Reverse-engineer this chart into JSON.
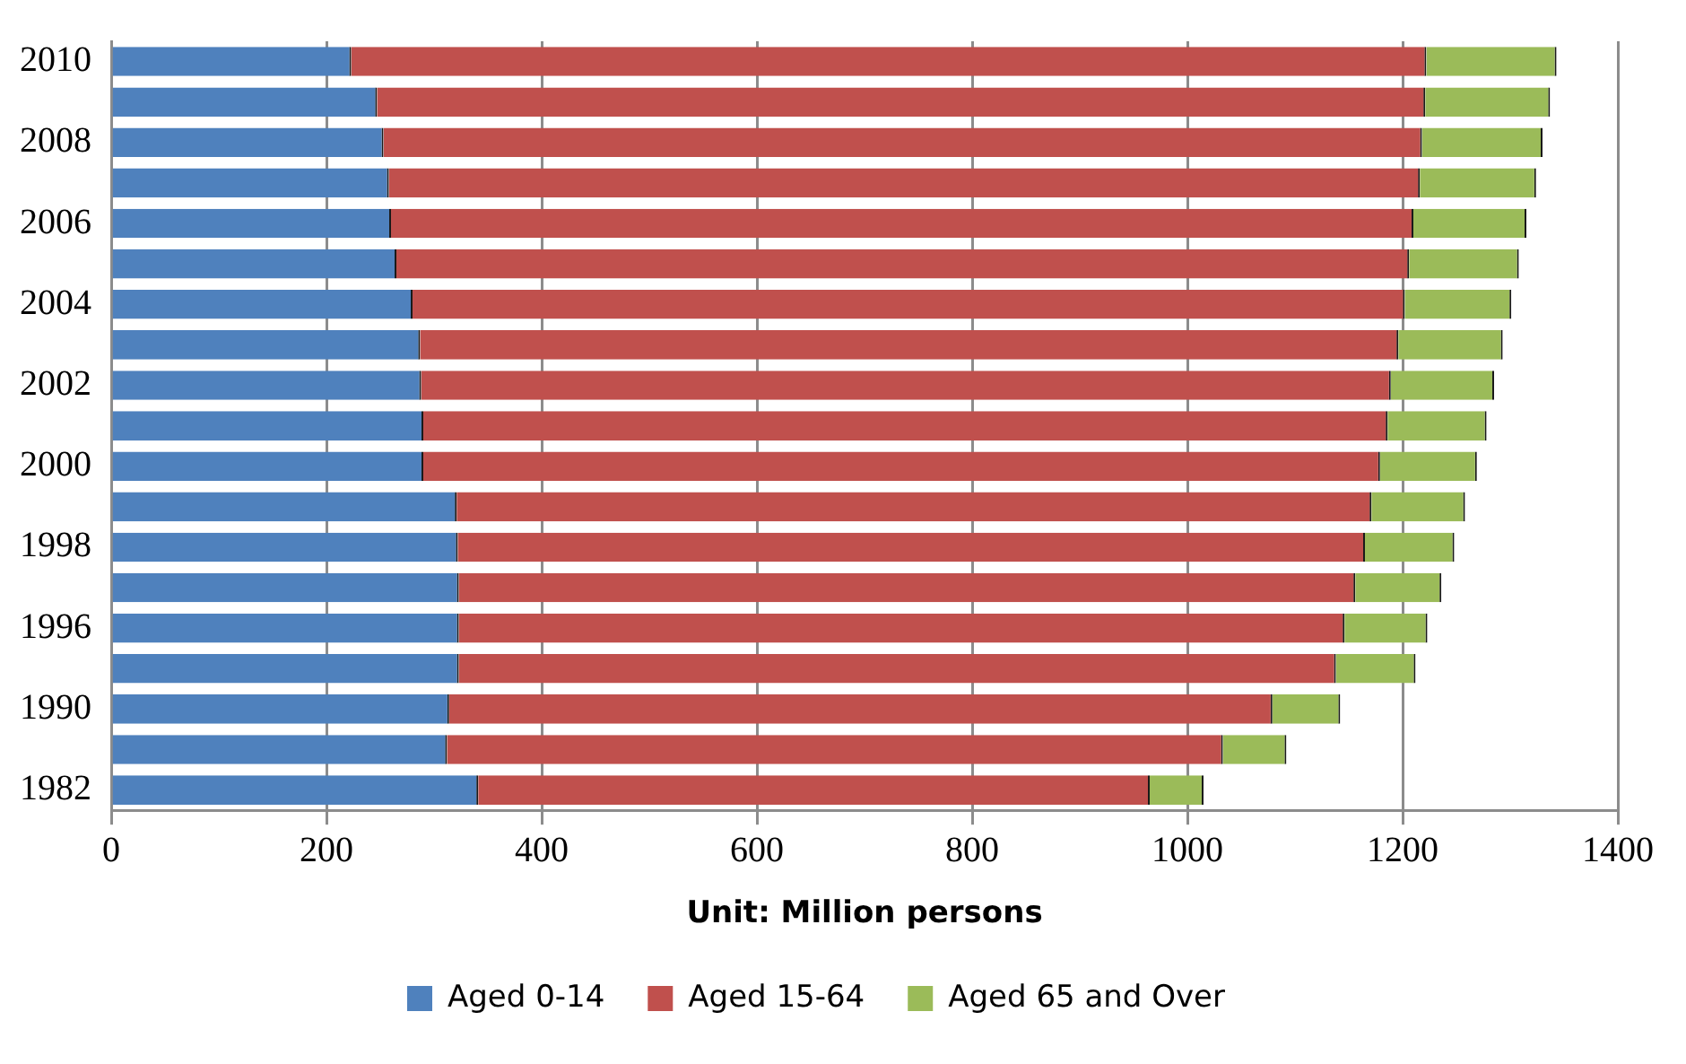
{
  "chart_data": {
    "type": "bar",
    "orientation": "horizontal",
    "stacked": true,
    "xlabel": "Unit: Million persons",
    "categories": [
      "2010",
      null,
      "2008",
      null,
      "2006",
      null,
      "2004",
      null,
      "2002",
      null,
      "2000",
      null,
      "1998",
      null,
      "1996",
      null,
      "1990",
      null,
      "1982"
    ],
    "series": [
      {
        "name": "Aged 0-14",
        "color": "#4f81bd",
        "values": [
          223,
          247,
          253,
          258,
          260,
          265,
          280,
          287,
          288,
          290,
          290,
          321,
          322,
          323,
          323,
          323,
          314,
          312,
          341
        ]
      },
      {
        "name": "Aged 15-64",
        "color": "#c0504d",
        "values": [
          999,
          974,
          965,
          958,
          950,
          941,
          922,
          909,
          901,
          896,
          889,
          850,
          843,
          833,
          823,
          815,
          765,
          721,
          624
        ]
      },
      {
        "name": "Aged 65 and Over",
        "color": "#9bbb59",
        "values": [
          121,
          116,
          112,
          108,
          105,
          102,
          99,
          97,
          96,
          92,
          90,
          87,
          83,
          80,
          77,
          74,
          63,
          59,
          50
        ]
      }
    ],
    "xlim": [
      0,
      1400
    ],
    "xticks": [
      0,
      200,
      400,
      600,
      800,
      1000,
      1200,
      1400
    ],
    "grid": "x",
    "legend": "bottom"
  }
}
